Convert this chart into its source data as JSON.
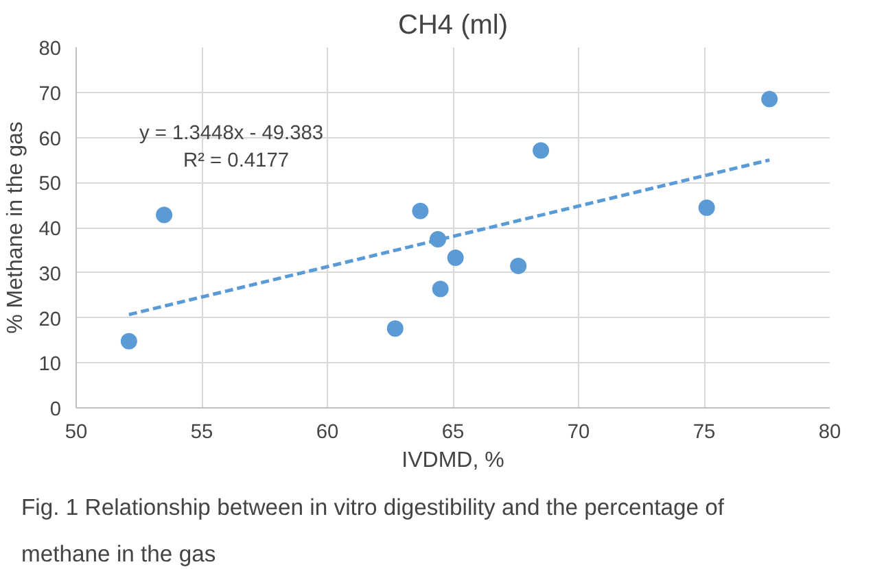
{
  "chart_data": {
    "type": "scatter",
    "title": "CH4 (ml)",
    "xlabel": "IVDMD, %",
    "ylabel": "% Methane in the gas",
    "x": [
      52.1,
      53.5,
      62.7,
      63.7,
      64.4,
      64.5,
      65.1,
      67.6,
      68.5,
      75.1,
      77.6
    ],
    "series": [
      {
        "color": "#5b9bd5",
        "marker": "circle",
        "values": [
          14.8,
          42.8,
          17.6,
          43.7,
          37.4,
          26.4,
          33.3,
          31.5,
          57.1,
          44.4,
          68.5
        ]
      },
      {
        "type": "line",
        "color": "#5b9bd5",
        "line_style": "dashed",
        "x": [
          52.1,
          77.6
        ],
        "values": [
          20.7,
          55.0
        ]
      }
    ],
    "xlim": [
      50,
      80
    ],
    "xticks": [
      50,
      55,
      60,
      65,
      70,
      75,
      80
    ],
    "ylim": [
      0,
      80
    ],
    "yticks": [
      0,
      10,
      20,
      30,
      40,
      50,
      60,
      70,
      80
    ],
    "grid": true,
    "annotations": [
      "y = 1.3448x - 49.383",
      "R² = 0.4177",
      "Fig. 1  Relationship between in vitro digestibility and the percentage of methane in the gas"
    ]
  }
}
